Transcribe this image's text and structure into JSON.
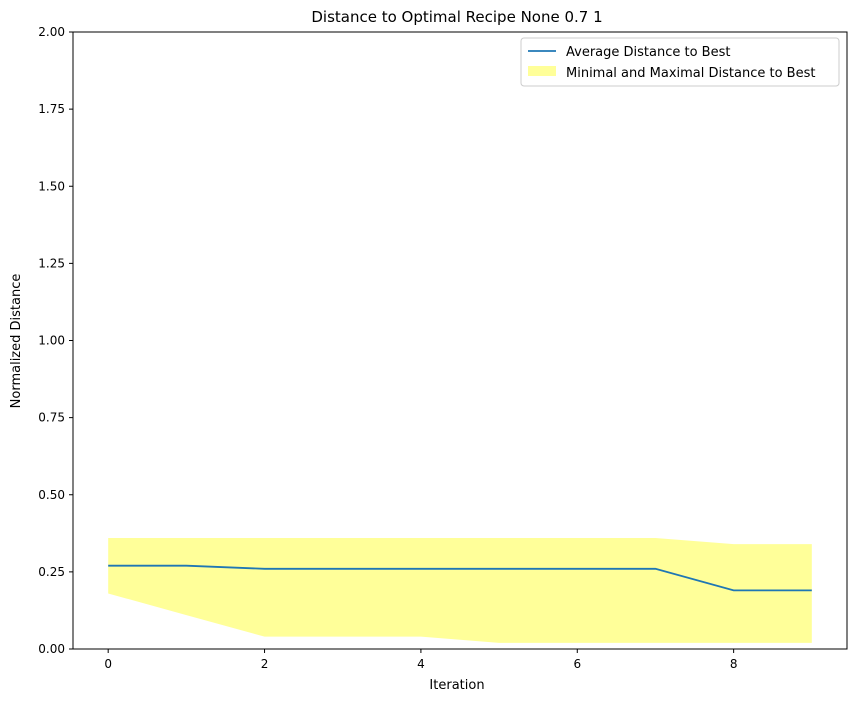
{
  "chart_data": {
    "type": "line",
    "title": "Distance to Optimal Recipe None 0.7 1",
    "xlabel": "Iteration",
    "ylabel": "Normalized Distance",
    "xlim": [
      -0.45,
      9.45
    ],
    "ylim": [
      0,
      2
    ],
    "xticks": [
      0,
      2,
      4,
      6,
      8
    ],
    "yticks": [
      0.0,
      0.25,
      0.5,
      0.75,
      1.0,
      1.25,
      1.5,
      1.75,
      2.0
    ],
    "ytick_labels": [
      "0.00",
      "0.25",
      "0.50",
      "0.75",
      "1.00",
      "1.25",
      "1.50",
      "1.75",
      "2.00"
    ],
    "grid": false,
    "legend_position": "top-right",
    "x": [
      0,
      1,
      2,
      3,
      4,
      5,
      6,
      7,
      8,
      9
    ],
    "series": [
      {
        "name": "Average Distance to Best",
        "kind": "line",
        "color": "#1f77b4",
        "values": [
          0.27,
          0.27,
          0.26,
          0.26,
          0.26,
          0.26,
          0.26,
          0.26,
          0.19,
          0.19
        ]
      },
      {
        "name": "Minimal and Maximal Distance to Best",
        "kind": "band",
        "color": "#ffff99",
        "lower": [
          0.18,
          0.11,
          0.04,
          0.04,
          0.04,
          0.02,
          0.02,
          0.02,
          0.02,
          0.02
        ],
        "upper": [
          0.36,
          0.36,
          0.36,
          0.36,
          0.36,
          0.36,
          0.36,
          0.36,
          0.34,
          0.34
        ]
      }
    ]
  }
}
